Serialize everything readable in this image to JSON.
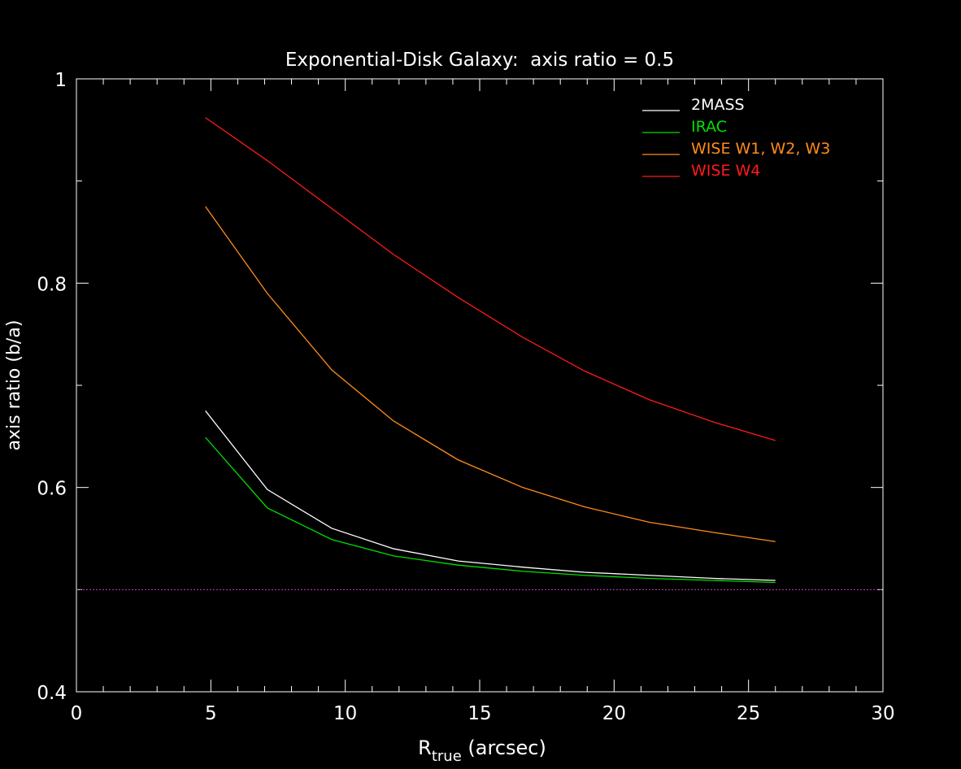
{
  "chart_data": {
    "type": "line",
    "title": "Exponential-Disk Galaxy:  axis ratio = 0.5",
    "ylabel": "axis ratio (b/a)",
    "xlabel_main": "R",
    "xlabel_sub": "true",
    "xlabel_rest": " (arcsec)",
    "xlim": [
      0,
      30
    ],
    "ylim": [
      0.4,
      1.0
    ],
    "xticks": [
      0,
      5,
      10,
      15,
      20,
      25,
      30
    ],
    "xtick_labels": [
      "0",
      "5",
      "10",
      "15",
      "20",
      "25",
      "30"
    ],
    "yticks": [
      0.4,
      0.6,
      0.8,
      1.0
    ],
    "ytick_labels": [
      "0.4",
      "0.6",
      "0.8",
      "1"
    ],
    "x_minor_step": 1,
    "y_minor_step": 0.1,
    "grid": false,
    "legend_position": "top-right",
    "reference_line": {
      "y": 0.5,
      "color": "#c040c0",
      "style": "dotted"
    },
    "series": [
      {
        "name": "2MASS",
        "color": "#ffffff",
        "x": [
          4.8,
          7.1,
          9.5,
          11.8,
          14.2,
          16.6,
          18.9,
          21.3,
          23.7,
          26.0
        ],
        "y": [
          0.675,
          0.598,
          0.56,
          0.54,
          0.528,
          0.522,
          0.517,
          0.514,
          0.511,
          0.509
        ]
      },
      {
        "name": "IRAC",
        "color": "#00e000",
        "x": [
          4.8,
          7.1,
          9.5,
          11.8,
          14.2,
          16.6,
          18.9,
          21.3,
          23.7,
          26.0
        ],
        "y": [
          0.649,
          0.58,
          0.549,
          0.533,
          0.524,
          0.518,
          0.514,
          0.511,
          0.509,
          0.507
        ]
      },
      {
        "name": "WISE W1, W2, W3",
        "color": "#ff8c1a",
        "x": [
          4.8,
          7.1,
          9.5,
          11.8,
          14.2,
          16.6,
          18.9,
          21.3,
          23.7,
          26.0
        ],
        "y": [
          0.875,
          0.79,
          0.715,
          0.665,
          0.627,
          0.6,
          0.581,
          0.566,
          0.556,
          0.547
        ]
      },
      {
        "name": "WISE W4",
        "color": "#ff1a1a",
        "x": [
          4.8,
          7.1,
          9.5,
          11.8,
          14.2,
          16.6,
          18.9,
          21.3,
          23.7,
          26.0
        ],
        "y": [
          0.962,
          0.92,
          0.873,
          0.828,
          0.786,
          0.747,
          0.714,
          0.686,
          0.664,
          0.646
        ]
      }
    ]
  }
}
